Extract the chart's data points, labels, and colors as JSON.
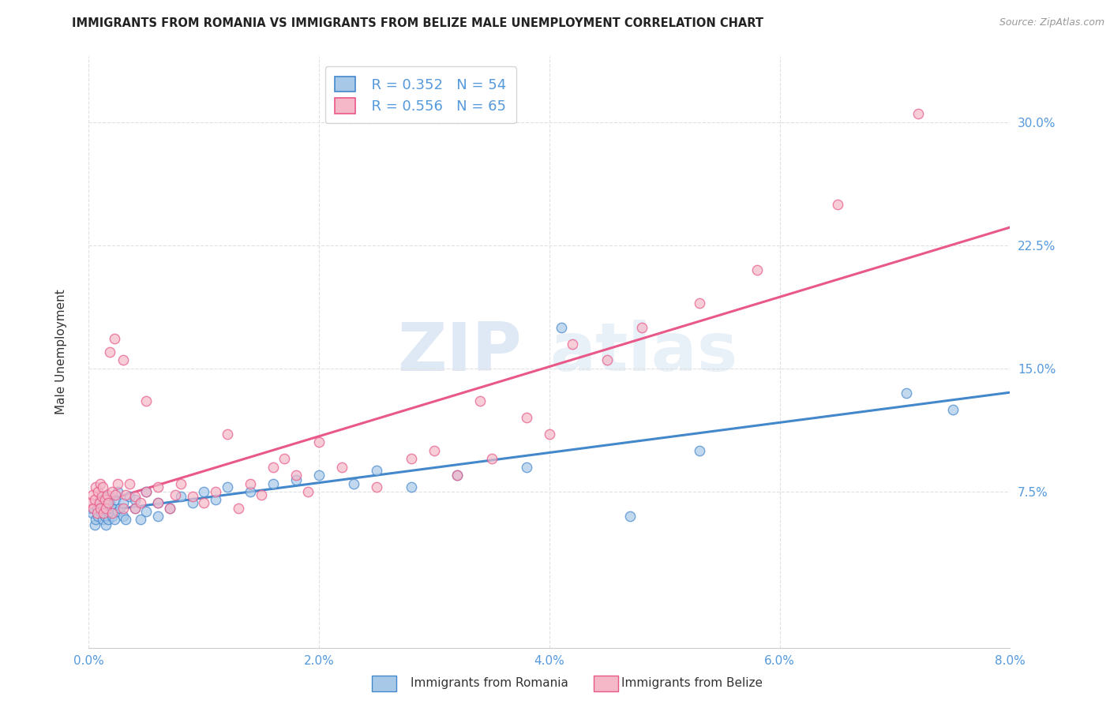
{
  "title": "IMMIGRANTS FROM ROMANIA VS IMMIGRANTS FROM BELIZE MALE UNEMPLOYMENT CORRELATION CHART",
  "source": "Source: ZipAtlas.com",
  "ylabel": "Male Unemployment",
  "xlabel_romania": "Immigrants from Romania",
  "xlabel_belize": "Immigrants from Belize",
  "romania_R": 0.352,
  "romania_N": 54,
  "belize_R": 0.556,
  "belize_N": 65,
  "color_romania": "#a8c8e8",
  "color_belize": "#f4b8c8",
  "color_romania_line": "#4488cc",
  "color_belize_line": "#e85888",
  "color_axis": "#5599dd",
  "xlim": [
    0.0,
    0.08
  ],
  "ylim": [
    -0.02,
    0.34
  ],
  "yticks": [
    0.075,
    0.15,
    0.225,
    0.3
  ],
  "ytick_labels": [
    "7.5%",
    "15.0%",
    "22.5%",
    "30.0%"
  ],
  "xticks": [
    0.0,
    0.02,
    0.04,
    0.06,
    0.08
  ],
  "xtick_labels": [
    "0.0%",
    "2.0%",
    "4.0%",
    "6.0%",
    "8.0%"
  ],
  "romania_x": [
    0.0003,
    0.0005,
    0.0006,
    0.0007,
    0.0008,
    0.0009,
    0.001,
    0.001,
    0.0012,
    0.0013,
    0.0014,
    0.0015,
    0.0015,
    0.0016,
    0.0017,
    0.0018,
    0.002,
    0.002,
    0.0022,
    0.0023,
    0.0025,
    0.0025,
    0.0027,
    0.003,
    0.003,
    0.0032,
    0.0035,
    0.004,
    0.004,
    0.0045,
    0.005,
    0.005,
    0.006,
    0.006,
    0.007,
    0.008,
    0.009,
    0.01,
    0.011,
    0.012,
    0.014,
    0.016,
    0.018,
    0.02,
    0.023,
    0.025,
    0.028,
    0.032,
    0.038,
    0.041,
    0.047,
    0.053,
    0.071,
    0.075
  ],
  "romania_y": [
    0.062,
    0.055,
    0.058,
    0.065,
    0.06,
    0.068,
    0.063,
    0.07,
    0.058,
    0.065,
    0.06,
    0.072,
    0.055,
    0.063,
    0.058,
    0.068,
    0.06,
    0.065,
    0.058,
    0.07,
    0.063,
    0.075,
    0.065,
    0.06,
    0.068,
    0.058,
    0.072,
    0.065,
    0.07,
    0.058,
    0.063,
    0.075,
    0.06,
    0.068,
    0.065,
    0.072,
    0.068,
    0.075,
    0.07,
    0.078,
    0.075,
    0.08,
    0.082,
    0.085,
    0.08,
    0.088,
    0.078,
    0.085,
    0.09,
    0.175,
    0.06,
    0.1,
    0.135,
    0.125
  ],
  "belize_x": [
    0.0002,
    0.0003,
    0.0004,
    0.0005,
    0.0006,
    0.0007,
    0.0008,
    0.0009,
    0.001,
    0.001,
    0.0011,
    0.0012,
    0.0013,
    0.0014,
    0.0015,
    0.0016,
    0.0017,
    0.0018,
    0.002,
    0.002,
    0.0022,
    0.0023,
    0.0025,
    0.003,
    0.003,
    0.0032,
    0.0035,
    0.004,
    0.004,
    0.0045,
    0.005,
    0.005,
    0.006,
    0.006,
    0.007,
    0.0075,
    0.008,
    0.009,
    0.01,
    0.011,
    0.012,
    0.013,
    0.014,
    0.015,
    0.016,
    0.017,
    0.018,
    0.019,
    0.02,
    0.022,
    0.025,
    0.028,
    0.03,
    0.032,
    0.034,
    0.035,
    0.038,
    0.04,
    0.042,
    0.045,
    0.048,
    0.053,
    0.058,
    0.065,
    0.072
  ],
  "belize_y": [
    0.068,
    0.073,
    0.065,
    0.07,
    0.078,
    0.062,
    0.075,
    0.068,
    0.08,
    0.065,
    0.072,
    0.078,
    0.062,
    0.07,
    0.065,
    0.073,
    0.068,
    0.16,
    0.075,
    0.062,
    0.168,
    0.073,
    0.08,
    0.065,
    0.155,
    0.073,
    0.08,
    0.065,
    0.072,
    0.068,
    0.075,
    0.13,
    0.068,
    0.078,
    0.065,
    0.073,
    0.08,
    0.072,
    0.068,
    0.075,
    0.11,
    0.065,
    0.08,
    0.073,
    0.09,
    0.095,
    0.085,
    0.075,
    0.105,
    0.09,
    0.078,
    0.095,
    0.1,
    0.085,
    0.13,
    0.095,
    0.12,
    0.11,
    0.165,
    0.155,
    0.175,
    0.19,
    0.21,
    0.25,
    0.305
  ],
  "watermark_zip": "ZIP",
  "watermark_atlas": "atlas",
  "background_color": "#ffffff",
  "grid_color": "#e0e0e0",
  "title_fontsize": 10.5,
  "source_fontsize": 9,
  "legend_fontsize": 13
}
